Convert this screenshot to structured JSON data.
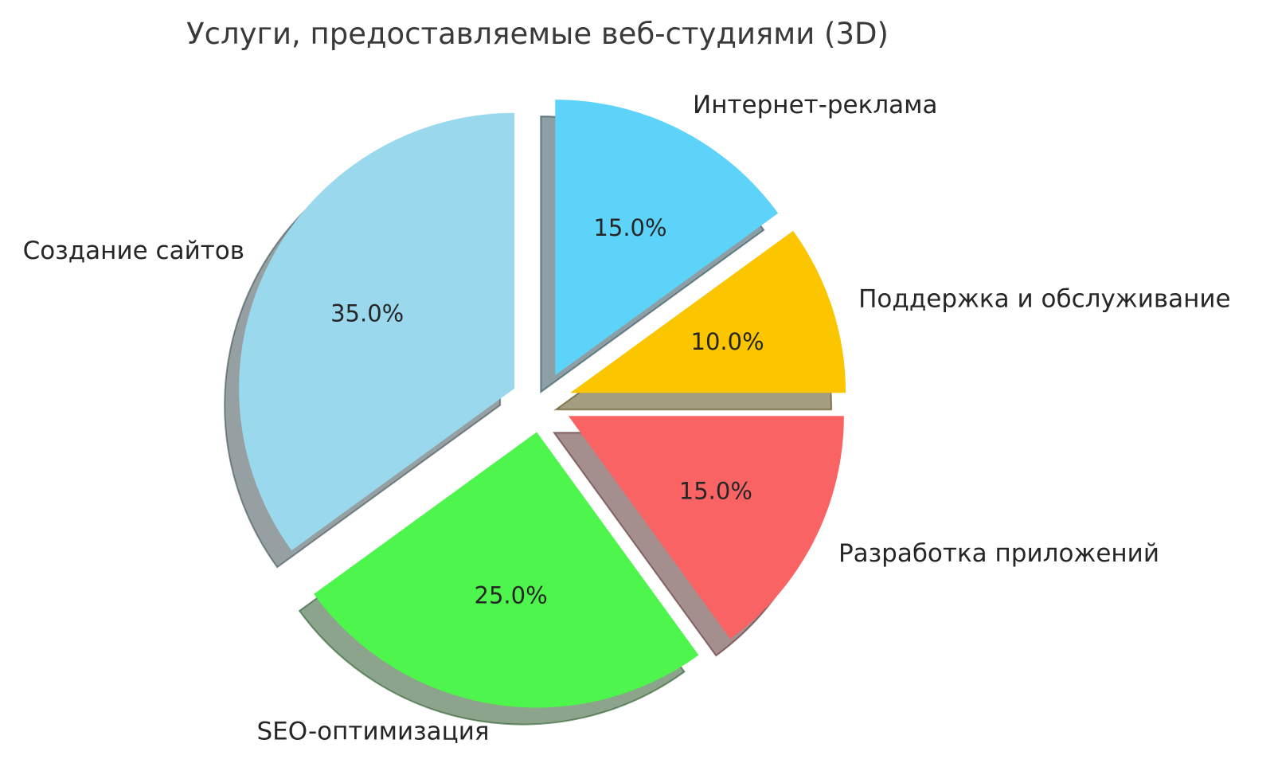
{
  "chart_data": {
    "type": "pie",
    "title": "Услуги, предоставляемые веб-студиями (3D)",
    "style": "3d-exploded-with-shadow",
    "start_angle": 90,
    "direction": "clockwise",
    "legend_position": "none",
    "background_color": "#ffffff",
    "text_color": "#262626",
    "title_color": "#3a3a3a",
    "slices": [
      {
        "label": "Интернет-реклама",
        "value": 15.0,
        "pct_label": "15.0%",
        "color": "#5DD3FA"
      },
      {
        "label": "Поддержка и обслуживание",
        "value": 10.0,
        "pct_label": "10.0%",
        "color": "#FBC500"
      },
      {
        "label": "Разработка приложений",
        "value": 15.0,
        "pct_label": "15.0%",
        "color": "#FA6363"
      },
      {
        "label": "SEO-оптимизация",
        "value": 25.0,
        "pct_label": "25.0%",
        "color": "#4DF54D"
      },
      {
        "label": "Создание сайтов",
        "value": 35.0,
        "pct_label": "35.0%",
        "color": "#9AD9ED"
      }
    ]
  }
}
